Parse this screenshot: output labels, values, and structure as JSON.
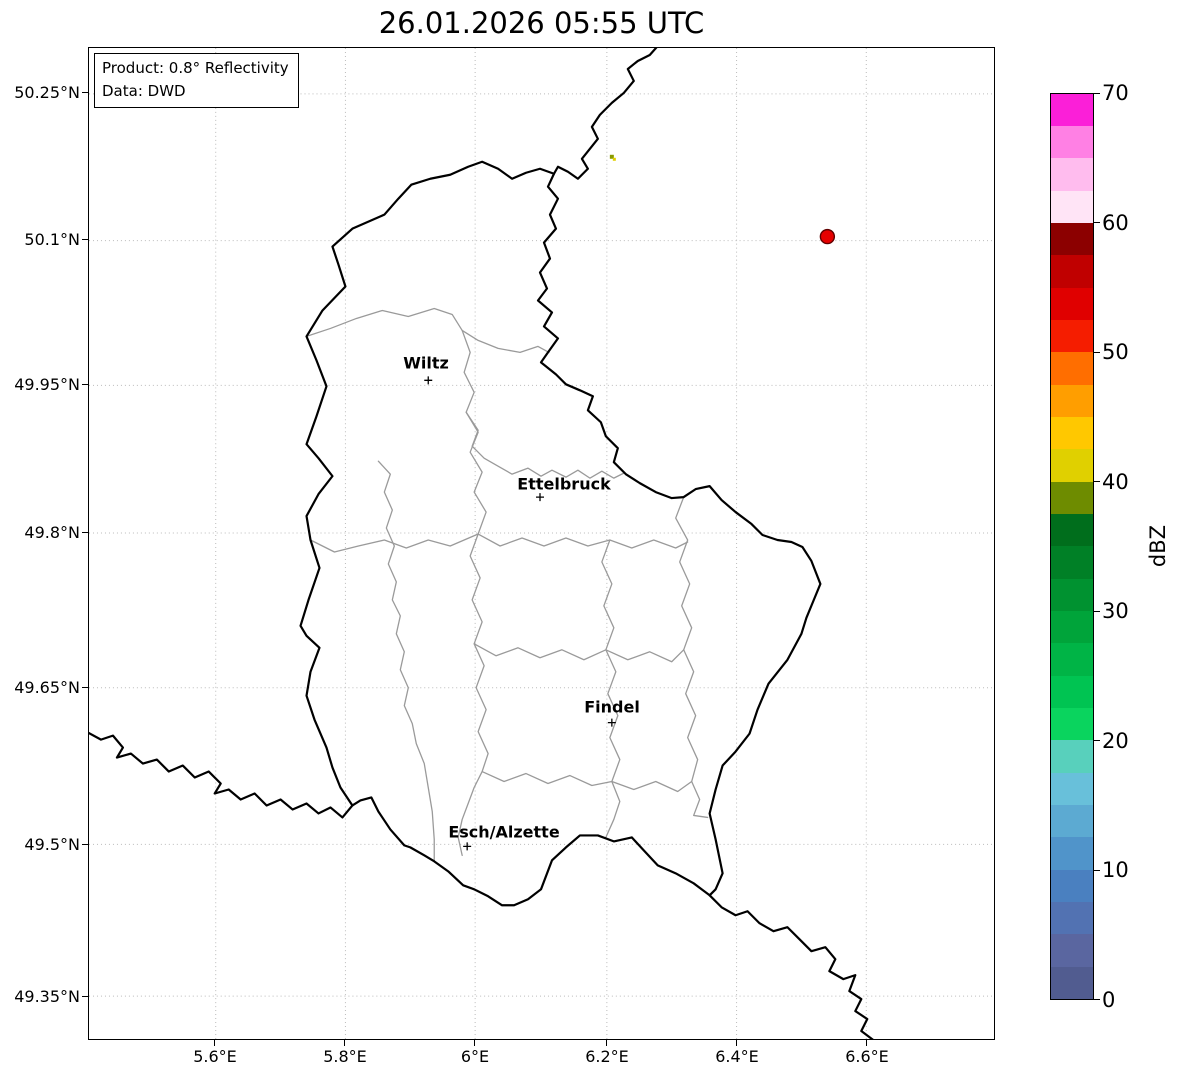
{
  "title": "26.01.2026 05:55 UTC",
  "info_box": {
    "product": "Product: 0.8° Reflectivity",
    "data": "Data: DWD"
  },
  "map": {
    "cities": [
      {
        "name": "Wiltz"
      },
      {
        "name": "Ettelbruck"
      },
      {
        "name": "Findel"
      },
      {
        "name": "Esch/Alzette"
      }
    ],
    "country_border_color": "#000000",
    "district_border_color": "#9a9a9a",
    "gridline_color": "#bbbbbb"
  },
  "axes": {
    "y_ticks": [
      "50.25°N",
      "50.1°N",
      "49.95°N",
      "49.8°N",
      "49.65°N",
      "49.5°N",
      "49.35°N"
    ],
    "x_ticks": [
      "5.6°E",
      "5.8°E",
      "6°E",
      "6.2°E",
      "6.4°E",
      "6.6°E"
    ]
  },
  "colorbar": {
    "label": "dBZ",
    "ticks": [
      "70",
      "60",
      "50",
      "40",
      "30",
      "20",
      "10",
      "0"
    ]
  },
  "chart_data": {
    "type": "heatmap",
    "title": "26.01.2026 05:55 UTC",
    "product": "0.8° Reflectivity",
    "source": "DWD",
    "region": "Luxembourg radar map",
    "x_axis_ticks": [
      "5.6°E",
      "5.8°E",
      "6°E",
      "6.2°E",
      "6.4°E",
      "6.6°E"
    ],
    "y_axis_ticks": [
      "50.25°N",
      "50.1°N",
      "49.95°N",
      "49.8°N",
      "49.65°N",
      "49.5°N",
      "49.35°N"
    ],
    "colorbar": {
      "label": "dBZ",
      "vmin": 0,
      "vmax": 70,
      "segment_step": 2.5,
      "tick_values": [
        0,
        10,
        20,
        30,
        40,
        50,
        60,
        70
      ],
      "colors": [
        "#515c90",
        "#5a66a0",
        "#5272b2",
        "#4a80c0",
        "#5094ca",
        "#5caad2",
        "#68c0da",
        "#58d0bc",
        "#0ad45e",
        "#00c452",
        "#00b446",
        "#00a43a",
        "#009230",
        "#008026",
        "#006e1c",
        "#6e8c00",
        "#e0d000",
        "#ffc800",
        "#ff9e00",
        "#ff6e00",
        "#f51d00",
        "#e00000",
        "#c00000",
        "#8c0000",
        "#ffe4f6",
        "#ffbcee",
        "#ff80e4",
        "#fb1fd8"
      ]
    },
    "echoes": [
      {
        "shape": "dot",
        "approx_lon": "6.54°E",
        "approx_lat": "50.11°N",
        "color": "#e60000",
        "approx_dbz": 51
      },
      {
        "shape": "small-cluster",
        "approx_lon": "6.21°E",
        "approx_lat": "50.19°N",
        "colors": [
          "#8a9a00",
          "#e0d000"
        ],
        "approx_dbz": 40
      }
    ]
  }
}
